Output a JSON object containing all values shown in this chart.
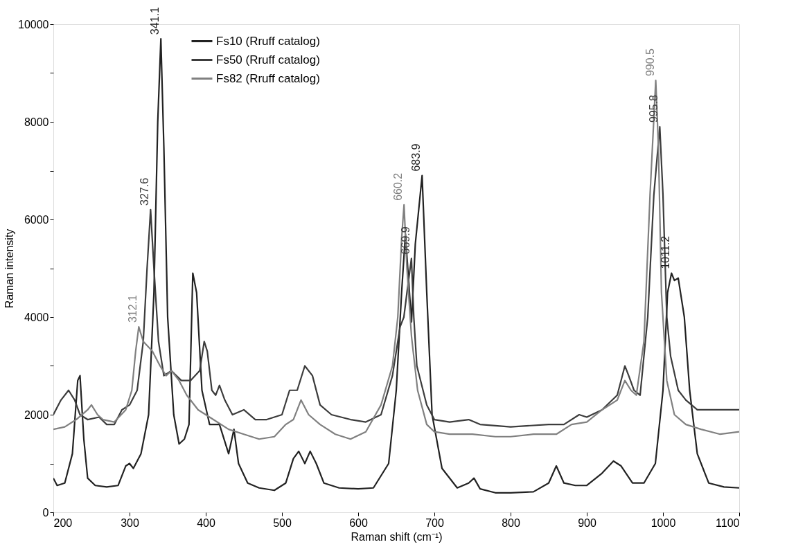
{
  "chart_data": {
    "type": "line",
    "xlabel": "Raman shift (cm⁻¹)",
    "ylabel": "Raman intensity",
    "xlim": [
      200,
      1100
    ],
    "xticks": [
      200,
      300,
      400,
      500,
      600,
      700,
      800,
      900,
      1000,
      1100
    ],
    "ylim": [
      0,
      10000
    ],
    "yticks": [
      0,
      {
        "value": 1000,
        "label": null
      },
      2000,
      {
        "value": 3000,
        "label": null
      },
      4000,
      {
        "value": 5000,
        "label": null
      },
      6000,
      {
        "value": 7000,
        "label": null
      },
      8000,
      {
        "value": 9000,
        "label": null
      },
      10000
    ],
    "grid": false,
    "legend": "top",
    "line_style": "solid",
    "marker": "none",
    "series": [
      {
        "name": "Fs10  (Rruff catalog)",
        "color": "#222222",
        "x": [
          200,
          205,
          215,
          225,
          232,
          235,
          240,
          245,
          255,
          270,
          285,
          295,
          300,
          305,
          315,
          325,
          332,
          337,
          341.1,
          345,
          350,
          358,
          365,
          372,
          378,
          383,
          388,
          395,
          405,
          418,
          430,
          437,
          443,
          455,
          470,
          490,
          505,
          515,
          522,
          530,
          537,
          545,
          555,
          575,
          600,
          620,
          640,
          650,
          657,
          662,
          666,
          670,
          675,
          683.9,
          690,
          697,
          710,
          730,
          745,
          752,
          760,
          780,
          800,
          830,
          850,
          860,
          870,
          885,
          900,
          920,
          935,
          945,
          960,
          975,
          990,
          1000,
          1006,
          1011.2,
          1015,
          1020,
          1028,
          1035,
          1045,
          1060,
          1080,
          1100
        ],
        "values": [
          700,
          550,
          600,
          1200,
          2700,
          2800,
          1500,
          700,
          550,
          520,
          550,
          950,
          1000,
          900,
          1200,
          2000,
          4500,
          8000,
          9700,
          7500,
          4000,
          2000,
          1400,
          1500,
          1800,
          4900,
          4500,
          2500,
          1800,
          1800,
          1200,
          1700,
          1000,
          600,
          500,
          450,
          600,
          1100,
          1250,
          1000,
          1250,
          1000,
          600,
          500,
          480,
          500,
          1000,
          2500,
          4500,
          5700,
          4800,
          3900,
          5500,
          6900,
          4500,
          2000,
          900,
          500,
          600,
          700,
          480,
          400,
          400,
          420,
          600,
          950,
          600,
          550,
          550,
          800,
          1050,
          950,
          600,
          600,
          1000,
          2500,
          4500,
          4900,
          4750,
          4800,
          4000,
          2500,
          1200,
          600,
          520,
          500
        ]
      },
      {
        "name": "Fs50  (Rruff catalog)",
        "color": "#3c3c3c",
        "x": [
          200,
          210,
          220,
          228,
          235,
          245,
          260,
          270,
          280,
          290,
          300,
          310,
          318,
          323,
          327.6,
          332,
          338,
          345,
          355,
          368,
          380,
          392,
          398,
          402,
          408,
          413,
          418,
          425,
          435,
          450,
          465,
          480,
          500,
          510,
          520,
          530,
          540,
          550,
          565,
          590,
          610,
          630,
          645,
          655,
          660,
          664,
          669.9,
          673,
          677,
          690,
          700,
          720,
          745,
          760,
          800,
          850,
          870,
          890,
          900,
          920,
          940,
          950,
          955,
          962,
          970,
          980,
          988,
          995.8,
          1000,
          1005,
          1010,
          1020,
          1030,
          1045,
          1070,
          1100
        ],
        "values": [
          2000,
          2300,
          2500,
          2300,
          2000,
          1900,
          1950,
          1800,
          1800,
          2100,
          2200,
          2500,
          3500,
          5000,
          6200,
          5000,
          3500,
          2800,
          2900,
          2700,
          2700,
          2900,
          3500,
          3300,
          2500,
          2400,
          2600,
          2300,
          2000,
          2100,
          1900,
          1900,
          2000,
          2500,
          2500,
          3000,
          2800,
          2200,
          2000,
          1900,
          1850,
          2000,
          2800,
          3800,
          4000,
          4500,
          5200,
          4000,
          3000,
          2200,
          1900,
          1850,
          1900,
          1800,
          1750,
          1800,
          1800,
          2000,
          1950,
          2100,
          2400,
          3000,
          2800,
          2500,
          2400,
          4000,
          6500,
          7900,
          6500,
          4000,
          3200,
          2500,
          2300,
          2100,
          2100,
          2100
        ]
      },
      {
        "name": "Fs82  (Rruff catalog)",
        "color": "#808080",
        "x": [
          200,
          215,
          230,
          245,
          250,
          258,
          265,
          280,
          295,
          303,
          308,
          312.1,
          318,
          330,
          340,
          348,
          355,
          365,
          375,
          390,
          410,
          430,
          450,
          470,
          490,
          505,
          515,
          525,
          535,
          550,
          570,
          590,
          610,
          630,
          645,
          652,
          657,
          660.2,
          664,
          670,
          678,
          690,
          700,
          720,
          750,
          780,
          800,
          830,
          860,
          880,
          900,
          920,
          940,
          950,
          958,
          965,
          975,
          983,
          990.5,
          994,
          998,
          1005,
          1015,
          1030,
          1050,
          1075,
          1100
        ],
        "values": [
          1700,
          1750,
          1900,
          2100,
          2200,
          2000,
          1900,
          1850,
          2100,
          2500,
          3300,
          3800,
          3500,
          3300,
          3000,
          2800,
          2900,
          2700,
          2400,
          2100,
          1900,
          1700,
          1600,
          1500,
          1550,
          1800,
          1900,
          2300,
          2000,
          1800,
          1600,
          1500,
          1650,
          2200,
          3000,
          4000,
          5600,
          6300,
          5000,
          3600,
          2500,
          1800,
          1650,
          1600,
          1600,
          1550,
          1550,
          1600,
          1600,
          1800,
          1850,
          2100,
          2300,
          2700,
          2500,
          2400,
          3500,
          6500,
          8850,
          7500,
          4500,
          2700,
          2000,
          1800,
          1700,
          1600,
          1650
        ]
      }
    ],
    "annotations": [
      {
        "text": "341.1",
        "x": 341.1,
        "y": 9700
      },
      {
        "text": "327.6",
        "x": 327.6,
        "y": 6200
      },
      {
        "text": "312.1",
        "x": 312.1,
        "y": 3800
      },
      {
        "text": "660.2",
        "x": 660.2,
        "y": 6300
      },
      {
        "text": "669.9",
        "x": 669.9,
        "y": 5200
      },
      {
        "text": "683.9",
        "x": 683.9,
        "y": 6900
      },
      {
        "text": "990.5",
        "x": 990.5,
        "y": 8850
      },
      {
        "text": "995.8",
        "x": 995.8,
        "y": 7900
      },
      {
        "text": "1011.2",
        "x": 1011.2,
        "y": 4900
      }
    ]
  }
}
